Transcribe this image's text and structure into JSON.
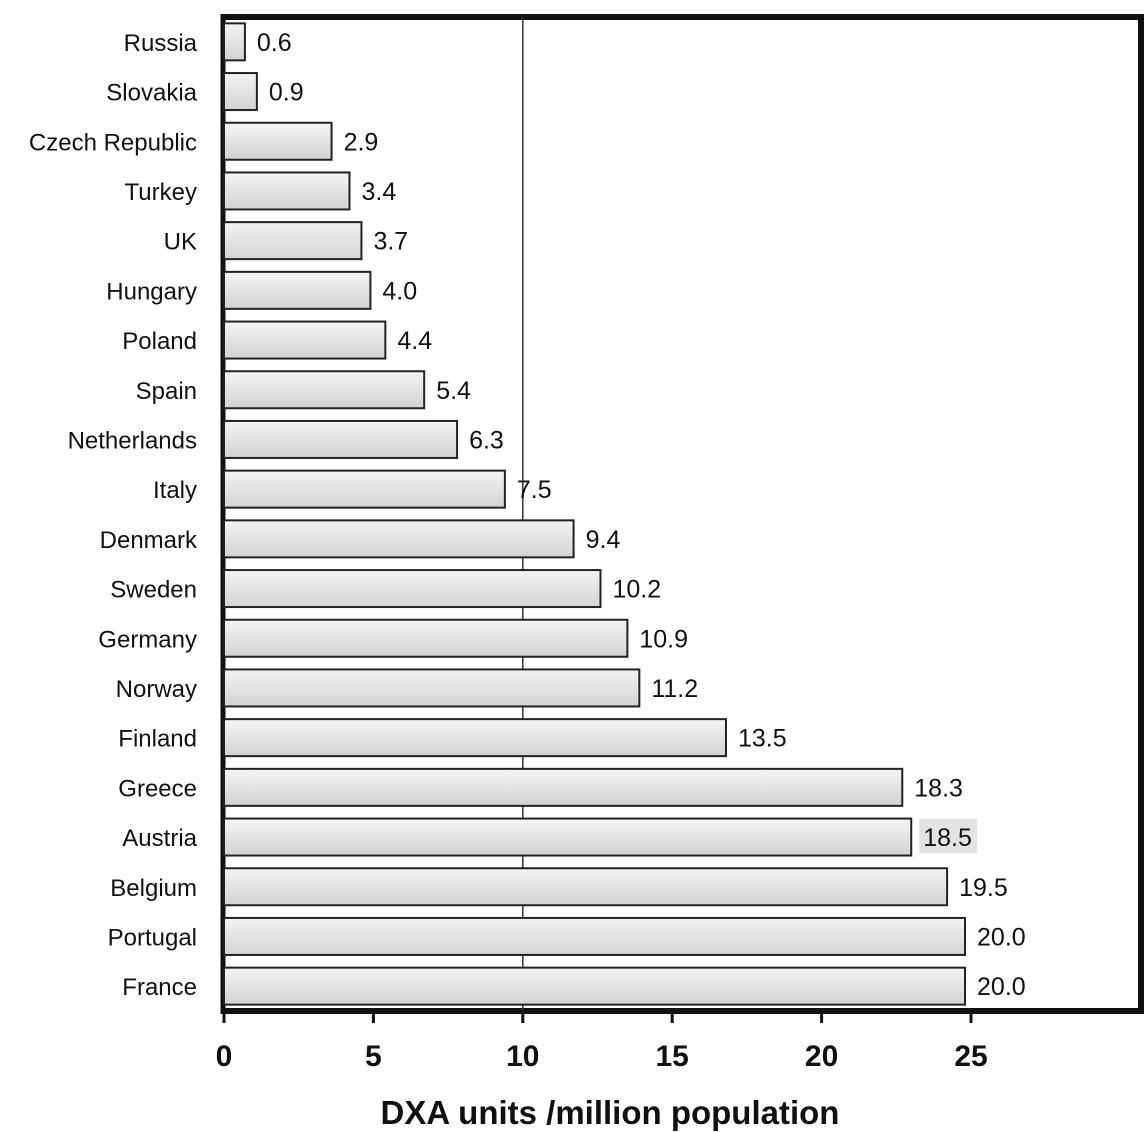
{
  "chart_data": {
    "type": "bar",
    "orientation": "horizontal",
    "title": "",
    "xlabel": "DXA units /million population",
    "ylabel": "",
    "xlim": [
      0,
      30
    ],
    "xticks": [
      0,
      5,
      10,
      15,
      20,
      25
    ],
    "xtick_labels": [
      "0",
      "5",
      "10",
      "15",
      "20",
      "25"
    ],
    "reference_line_x": 10,
    "grid": false,
    "legend": "none",
    "categories": [
      "Russia",
      "Slovakia",
      "Czech Republic",
      "Turkey",
      "UK",
      "Hungary",
      "Poland",
      "Spain",
      "Netherlands",
      "Italy",
      "Denmark",
      "Sweden",
      "Germany",
      "Norway",
      "Finland",
      "Greece",
      "Austria",
      "Belgium",
      "Portugal",
      "France"
    ],
    "values": [
      0.6,
      0.9,
      2.9,
      3.4,
      3.7,
      4.0,
      4.4,
      5.4,
      6.3,
      7.5,
      9.4,
      10.2,
      10.9,
      11.2,
      13.5,
      18.3,
      18.5,
      19.5,
      20.0,
      20.0
    ],
    "value_labels": [
      "0.6",
      "0.9",
      "2.9",
      "3.4",
      "3.7",
      "4.0",
      "4.4",
      "5.4",
      "6.3",
      "7.5",
      "9.4",
      "10.2",
      "10.9",
      "11.2",
      "13.5",
      "18.3",
      "18.5",
      "19.5",
      "20.0",
      "20.0"
    ],
    "bar_lengths": [
      0.7,
      1.1,
      3.6,
      4.2,
      4.6,
      4.9,
      5.4,
      6.7,
      7.8,
      9.4,
      11.7,
      12.6,
      13.5,
      13.9,
      16.8,
      22.7,
      23.0,
      24.2,
      24.8,
      24.8
    ],
    "colors": {
      "bar_fill_light": "#f4f4f4",
      "bar_fill_dark": "#d2d2d2",
      "bar_stroke": "#222222",
      "axis": "#111111",
      "highlight_label_bg": "#e3e3e3"
    },
    "highlighted_label": "Austria"
  }
}
